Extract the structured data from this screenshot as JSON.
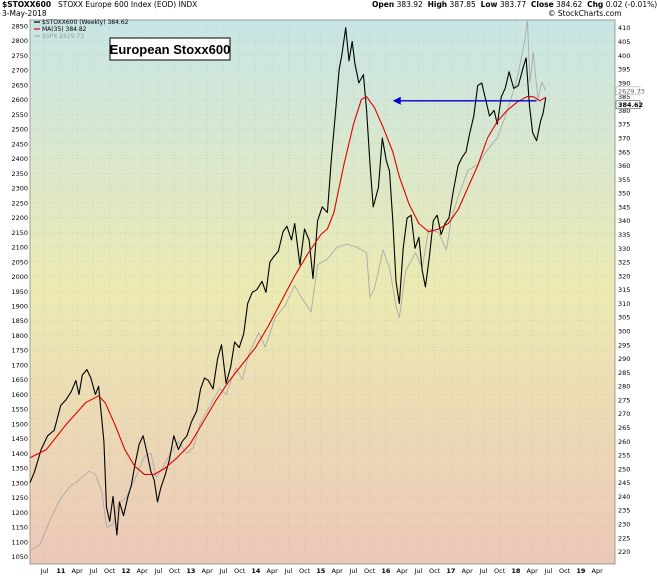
{
  "header": {
    "symbol": "$STOXX600",
    "name": "STOXX Europe 600 Index (EOD) INDX",
    "date": "3-May-2018",
    "watermark": "© StockCharts.com",
    "ohlc": {
      "open_label": "Open",
      "open": "383.92",
      "high_label": "High",
      "high": "387.85",
      "low_label": "Low",
      "low": "383.77",
      "close_label": "Close",
      "close": "384.62",
      "chg_label": "Chg",
      "chg": "0.02 (-0.01%)"
    }
  },
  "colors": {
    "price": "#000000",
    "ma": "#dd0000",
    "spx": "#aaaaaa",
    "arrow": "#0000cc",
    "bg_top": "#c8e6e6",
    "bg_mid": "#eceab2",
    "bg_bottom": "#ecc8b8"
  },
  "chart_data": {
    "type": "line",
    "title": "European Stoxx600",
    "legend": [
      {
        "label": "$STOXX600 (Weekly) 384.62",
        "color": "#000000"
      },
      {
        "label": "MA(35) 384.82",
        "color": "#dd0000"
      },
      {
        "label": "$SPX 2629.73",
        "color": "#aaaaaa"
      }
    ],
    "legend_position": "top-left",
    "grid": true,
    "x_tick_labels": [
      "Jul",
      "11",
      "Apr",
      "Jul",
      "Oct",
      "12",
      "Apr",
      "Jul",
      "Oct",
      "13",
      "Apr",
      "Jul",
      "Oct",
      "14",
      "Apr",
      "Jul",
      "Oct",
      "15",
      "Apr",
      "Jul",
      "Oct",
      "16",
      "Apr",
      "Jul",
      "Oct",
      "17",
      "Apr",
      "Jul",
      "Oct",
      "18",
      "Apr",
      "Jul",
      "Oct",
      "19",
      "Apr"
    ],
    "x_range": [
      2010.45,
      2019.4
    ],
    "left_axis": {
      "label": "$SPX",
      "range": [
        1025,
        2870
      ],
      "ticks": [
        1050,
        1100,
        1150,
        1200,
        1250,
        1300,
        1350,
        1400,
        1450,
        1500,
        1550,
        1600,
        1650,
        1700,
        1750,
        1800,
        1850,
        1900,
        1950,
        2000,
        2050,
        2100,
        2150,
        2200,
        2250,
        2300,
        2350,
        2400,
        2450,
        2500,
        2550,
        2600,
        2650,
        2700,
        2750,
        2800,
        2850
      ]
    },
    "right_axis": {
      "label": "$STOXX600",
      "range": [
        215.5,
        412.8
      ],
      "ticks": [
        220,
        225,
        230,
        235,
        240,
        245,
        250,
        255,
        260,
        265,
        270,
        275,
        280,
        285,
        290,
        295,
        300,
        305,
        310,
        315,
        320,
        325,
        330,
        335,
        340,
        345,
        350,
        355,
        360,
        365,
        370,
        375,
        380,
        385,
        390,
        395,
        400,
        405,
        410
      ]
    },
    "series": [
      {
        "name": "$STOXX600",
        "axis": "right",
        "points": [
          [
            2010.45,
            245
          ],
          [
            2010.52,
            249
          ],
          [
            2010.62,
            257
          ],
          [
            2010.72,
            262
          ],
          [
            2010.82,
            264
          ],
          [
            2010.92,
            273
          ],
          [
            2011.0,
            275
          ],
          [
            2011.08,
            278
          ],
          [
            2011.15,
            282
          ],
          [
            2011.2,
            277
          ],
          [
            2011.25,
            284
          ],
          [
            2011.32,
            286
          ],
          [
            2011.38,
            283
          ],
          [
            2011.45,
            277
          ],
          [
            2011.5,
            280
          ],
          [
            2011.58,
            260
          ],
          [
            2011.62,
            236
          ],
          [
            2011.67,
            231
          ],
          [
            2011.72,
            240
          ],
          [
            2011.78,
            226
          ],
          [
            2011.82,
            238
          ],
          [
            2011.88,
            233
          ],
          [
            2011.95,
            240
          ],
          [
            2012.0,
            244
          ],
          [
            2012.06,
            252
          ],
          [
            2012.12,
            259
          ],
          [
            2012.18,
            262
          ],
          [
            2012.23,
            257
          ],
          [
            2012.3,
            249
          ],
          [
            2012.35,
            246
          ],
          [
            2012.4,
            238
          ],
          [
            2012.45,
            243
          ],
          [
            2012.52,
            248
          ],
          [
            2012.58,
            253
          ],
          [
            2012.65,
            262
          ],
          [
            2012.72,
            257
          ],
          [
            2012.78,
            260
          ],
          [
            2012.85,
            262
          ],
          [
            2012.92,
            267
          ],
          [
            2013.0,
            271
          ],
          [
            2013.06,
            279
          ],
          [
            2013.12,
            283
          ],
          [
            2013.18,
            282
          ],
          [
            2013.25,
            279
          ],
          [
            2013.32,
            290
          ],
          [
            2013.38,
            295
          ],
          [
            2013.45,
            281
          ],
          [
            2013.52,
            287
          ],
          [
            2013.58,
            296
          ],
          [
            2013.65,
            294
          ],
          [
            2013.72,
            299
          ],
          [
            2013.78,
            310
          ],
          [
            2013.85,
            314
          ],
          [
            2013.92,
            315
          ],
          [
            2014.0,
            318
          ],
          [
            2014.06,
            314
          ],
          [
            2014.12,
            325
          ],
          [
            2014.18,
            327
          ],
          [
            2014.25,
            329
          ],
          [
            2014.32,
            336
          ],
          [
            2014.38,
            338
          ],
          [
            2014.45,
            333
          ],
          [
            2014.5,
            339
          ],
          [
            2014.58,
            324
          ],
          [
            2014.65,
            337
          ],
          [
            2014.72,
            333
          ],
          [
            2014.78,
            319
          ],
          [
            2014.85,
            340
          ],
          [
            2014.92,
            345
          ],
          [
            2015.0,
            343
          ],
          [
            2015.06,
            362
          ],
          [
            2015.12,
            378
          ],
          [
            2015.18,
            395
          ],
          [
            2015.22,
            400
          ],
          [
            2015.28,
            410
          ],
          [
            2015.33,
            398
          ],
          [
            2015.38,
            405
          ],
          [
            2015.42,
            397
          ],
          [
            2015.48,
            390
          ],
          [
            2015.55,
            393
          ],
          [
            2015.6,
            380
          ],
          [
            2015.65,
            361
          ],
          [
            2015.7,
            345
          ],
          [
            2015.78,
            352
          ],
          [
            2015.84,
            370
          ],
          [
            2015.9,
            362
          ],
          [
            2015.95,
            358
          ],
          [
            2016.0,
            340
          ],
          [
            2016.05,
            318
          ],
          [
            2016.1,
            310
          ],
          [
            2016.16,
            330
          ],
          [
            2016.22,
            341
          ],
          [
            2016.28,
            342
          ],
          [
            2016.34,
            330
          ],
          [
            2016.4,
            334
          ],
          [
            2016.45,
            322
          ],
          [
            2016.5,
            316
          ],
          [
            2016.56,
            327
          ],
          [
            2016.62,
            340
          ],
          [
            2016.68,
            342
          ],
          [
            2016.74,
            335
          ],
          [
            2016.8,
            339
          ],
          [
            2016.86,
            341
          ],
          [
            2016.92,
            350
          ],
          [
            2017.0,
            360
          ],
          [
            2017.06,
            363
          ],
          [
            2017.12,
            365
          ],
          [
            2017.18,
            372
          ],
          [
            2017.24,
            378
          ],
          [
            2017.3,
            389
          ],
          [
            2017.36,
            390
          ],
          [
            2017.42,
            384
          ],
          [
            2017.48,
            378
          ],
          [
            2017.55,
            380
          ],
          [
            2017.6,
            375
          ],
          [
            2017.66,
            385
          ],
          [
            2017.72,
            388
          ],
          [
            2017.78,
            394
          ],
          [
            2017.85,
            388
          ],
          [
            2017.92,
            389
          ],
          [
            2018.0,
            396
          ],
          [
            2018.04,
            399
          ],
          [
            2018.09,
            382
          ],
          [
            2018.14,
            372
          ],
          [
            2018.2,
            369
          ],
          [
            2018.26,
            376
          ],
          [
            2018.3,
            379
          ],
          [
            2018.34,
            384.6
          ]
        ]
      },
      {
        "name": "MA(35)",
        "axis": "right",
        "points": [
          [
            2010.45,
            254
          ],
          [
            2010.7,
            257
          ],
          [
            2011.0,
            266
          ],
          [
            2011.3,
            274
          ],
          [
            2011.5,
            276.5
          ],
          [
            2011.6,
            274
          ],
          [
            2011.75,
            266
          ],
          [
            2011.9,
            257
          ],
          [
            2012.05,
            251
          ],
          [
            2012.2,
            248
          ],
          [
            2012.35,
            248
          ],
          [
            2012.5,
            250
          ],
          [
            2012.7,
            254
          ],
          [
            2012.9,
            259
          ],
          [
            2013.1,
            267
          ],
          [
            2013.3,
            275
          ],
          [
            2013.5,
            282
          ],
          [
            2013.7,
            288
          ],
          [
            2013.9,
            294
          ],
          [
            2014.1,
            302
          ],
          [
            2014.3,
            311
          ],
          [
            2014.5,
            320
          ],
          [
            2014.7,
            328
          ],
          [
            2014.9,
            335
          ],
          [
            2015.0,
            337
          ],
          [
            2015.1,
            343
          ],
          [
            2015.25,
            360
          ],
          [
            2015.4,
            375
          ],
          [
            2015.52,
            384
          ],
          [
            2015.6,
            385
          ],
          [
            2015.72,
            381
          ],
          [
            2015.85,
            374
          ],
          [
            2016.0,
            365
          ],
          [
            2016.1,
            356
          ],
          [
            2016.25,
            346
          ],
          [
            2016.4,
            339
          ],
          [
            2016.55,
            336
          ],
          [
            2016.7,
            337
          ],
          [
            2016.85,
            339
          ],
          [
            2017.0,
            344
          ],
          [
            2017.15,
            352
          ],
          [
            2017.3,
            360
          ],
          [
            2017.45,
            370
          ],
          [
            2017.6,
            376
          ],
          [
            2017.75,
            380
          ],
          [
            2017.9,
            383
          ],
          [
            2018.05,
            385
          ],
          [
            2018.15,
            385
          ],
          [
            2018.25,
            383.5
          ],
          [
            2018.34,
            384.8
          ]
        ]
      },
      {
        "name": "$SPX",
        "axis": "left",
        "points": [
          [
            2010.45,
            1070
          ],
          [
            2010.6,
            1090
          ],
          [
            2010.75,
            1170
          ],
          [
            2010.9,
            1240
          ],
          [
            2011.05,
            1285
          ],
          [
            2011.2,
            1310
          ],
          [
            2011.35,
            1340
          ],
          [
            2011.45,
            1330
          ],
          [
            2011.55,
            1270
          ],
          [
            2011.62,
            1150
          ],
          [
            2011.72,
            1160
          ],
          [
            2011.8,
            1230
          ],
          [
            2011.92,
            1250
          ],
          [
            2012.05,
            1310
          ],
          [
            2012.2,
            1390
          ],
          [
            2012.3,
            1400
          ],
          [
            2012.38,
            1320
          ],
          [
            2012.45,
            1340
          ],
          [
            2012.6,
            1400
          ],
          [
            2012.72,
            1440
          ],
          [
            2012.85,
            1400
          ],
          [
            2012.95,
            1420
          ],
          [
            2013.05,
            1500
          ],
          [
            2013.2,
            1560
          ],
          [
            2013.35,
            1620
          ],
          [
            2013.45,
            1600
          ],
          [
            2013.6,
            1690
          ],
          [
            2013.7,
            1650
          ],
          [
            2013.8,
            1740
          ],
          [
            2013.95,
            1810
          ],
          [
            2014.05,
            1760
          ],
          [
            2014.2,
            1860
          ],
          [
            2014.35,
            1900
          ],
          [
            2014.5,
            1970
          ],
          [
            2014.6,
            1930
          ],
          [
            2014.75,
            1880
          ],
          [
            2014.85,
            2040
          ],
          [
            2015.0,
            2060
          ],
          [
            2015.15,
            2100
          ],
          [
            2015.3,
            2110
          ],
          [
            2015.45,
            2100
          ],
          [
            2015.6,
            2080
          ],
          [
            2015.65,
            1930
          ],
          [
            2015.72,
            1960
          ],
          [
            2015.85,
            2090
          ],
          [
            2015.95,
            2030
          ],
          [
            2016.05,
            1900
          ],
          [
            2016.1,
            1860
          ],
          [
            2016.2,
            2020
          ],
          [
            2016.35,
            2080
          ],
          [
            2016.45,
            2030
          ],
          [
            2016.55,
            2160
          ],
          [
            2016.7,
            2150
          ],
          [
            2016.82,
            2090
          ],
          [
            2016.9,
            2200
          ],
          [
            2017.0,
            2270
          ],
          [
            2017.15,
            2360
          ],
          [
            2017.3,
            2380
          ],
          [
            2017.45,
            2430
          ],
          [
            2017.6,
            2470
          ],
          [
            2017.75,
            2560
          ],
          [
            2017.9,
            2670
          ],
          [
            2018.02,
            2800
          ],
          [
            2018.06,
            2870
          ],
          [
            2018.1,
            2660
          ],
          [
            2018.15,
            2760
          ],
          [
            2018.22,
            2600
          ],
          [
            2018.28,
            2660
          ],
          [
            2018.34,
            2629.7
          ]
        ]
      }
    ],
    "arrow": {
      "from": [
        2018.2,
        383.5
      ],
      "to": [
        2016.0,
        383.5
      ],
      "color": "#0000cc"
    },
    "end_labels": {
      "spx": "2629.73",
      "stoxx": "384.62"
    }
  }
}
